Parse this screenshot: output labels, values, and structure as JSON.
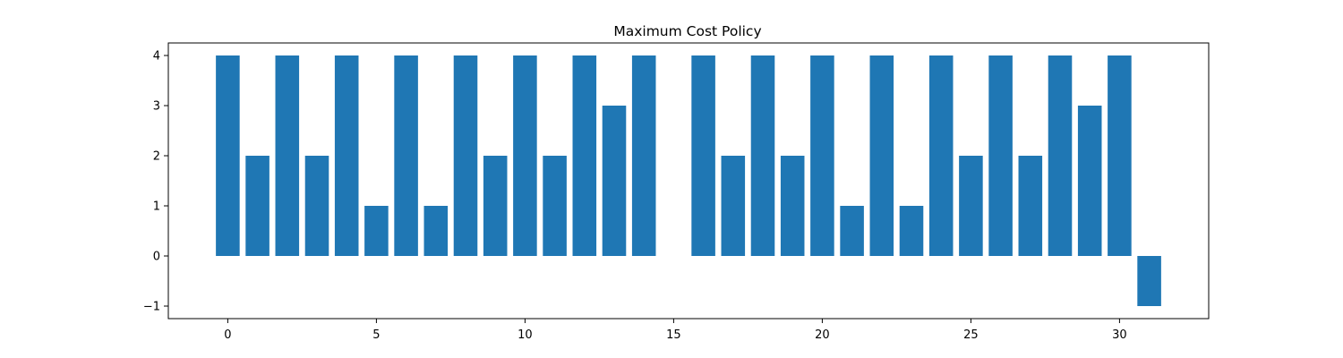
{
  "chart_data": {
    "type": "bar",
    "title": "Maximum Cost Policy",
    "xlabel": "",
    "ylabel": "",
    "x": [
      0,
      1,
      2,
      3,
      4,
      5,
      6,
      7,
      8,
      9,
      10,
      11,
      12,
      13,
      14,
      15,
      16,
      17,
      18,
      19,
      20,
      21,
      22,
      23,
      24,
      25,
      26,
      27,
      28,
      29,
      30,
      31
    ],
    "values": [
      4,
      2,
      4,
      2,
      4,
      1,
      4,
      1,
      4,
      2,
      4,
      2,
      4,
      3,
      4,
      0,
      4,
      2,
      4,
      2,
      4,
      1,
      4,
      1,
      4,
      2,
      4,
      2,
      4,
      3,
      4,
      -1
    ],
    "xlim": [
      -2.0,
      33.0
    ],
    "ylim": [
      -1.25,
      4.25
    ],
    "xticks": [
      0,
      5,
      10,
      15,
      20,
      25,
      30
    ],
    "yticks": [
      -1,
      0,
      1,
      2,
      3,
      4
    ],
    "xtick_labels": [
      "0",
      "5",
      "10",
      "15",
      "20",
      "25",
      "30"
    ],
    "ytick_labels": [
      "−1",
      "0",
      "1",
      "2",
      "3",
      "4"
    ],
    "bar_color": "#1f77b4",
    "grid": false,
    "legend": "none"
  }
}
